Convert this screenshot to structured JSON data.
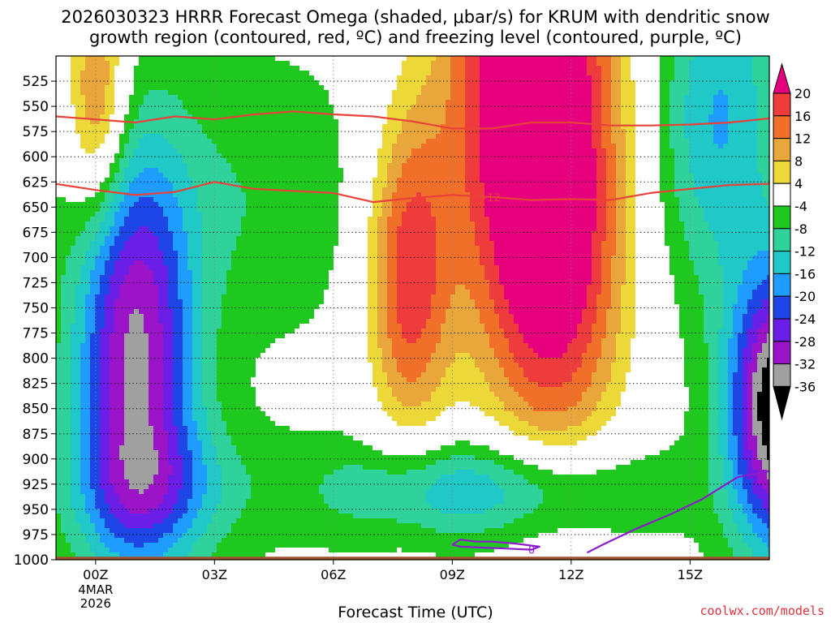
{
  "title_line1": "2026030323 HRRR Forecast Omega (shaded, μbar/s) for KRUM with dendritic snow",
  "title_line2": "growth region (contoured, red, ºC) and freezing level (contoured, purple, ºC)",
  "credit": "coolwx.com/models",
  "chart_data": {
    "type": "heatmap",
    "xlabel": "Forecast Time (UTC)",
    "ylabel": "",
    "x_ticks": [
      "00Z",
      "03Z",
      "06Z",
      "09Z",
      "12Z",
      "15Z"
    ],
    "x_tick_hours": [
      0,
      3,
      6,
      9,
      12,
      15
    ],
    "x_date_label": [
      "4MAR",
      "2026"
    ],
    "xlim_hours": [
      -1,
      17
    ],
    "y_ticks": [
      525,
      550,
      575,
      600,
      625,
      650,
      675,
      700,
      725,
      750,
      775,
      800,
      825,
      850,
      875,
      900,
      925,
      950,
      975,
      1000
    ],
    "ylim_mb": [
      500,
      1000
    ],
    "colorbar": {
      "levels": [
        20,
        16,
        12,
        8,
        4,
        -4,
        -8,
        -12,
        -16,
        -20,
        -24,
        -28,
        -32,
        -36
      ],
      "colors": [
        "#e6007e",
        "#ee3c3c",
        "#f0702a",
        "#e9a63a",
        "#ecd838",
        "#ffffff",
        "#1ec81e",
        "#2fd29a",
        "#20c8c8",
        "#1e9cff",
        "#1e46e6",
        "#6a1ee6",
        "#9c14c8",
        "#a0a0a0",
        "#000000"
      ]
    },
    "contours": [
      {
        "name": "dendritic",
        "label": "-12",
        "color": "#e8423a",
        "x": [
          -1,
          0,
          1,
          2,
          3,
          4,
          5,
          6,
          7,
          8,
          9,
          10,
          11,
          12,
          13,
          14,
          15,
          16,
          17
        ],
        "y": [
          627,
          633,
          638,
          635,
          625,
          632,
          634,
          636,
          645,
          641,
          638,
          640,
          643,
          642,
          643,
          636,
          632,
          628,
          627
        ]
      },
      {
        "name": "dendritic",
        "label": "",
        "color": "#e8423a",
        "x": [
          -1,
          0,
          1,
          2,
          3,
          4,
          5,
          6,
          7,
          8,
          9,
          10,
          11,
          12,
          13,
          14,
          15,
          16,
          17
        ],
        "y": [
          560,
          563,
          566,
          560,
          563,
          558,
          555,
          558,
          560,
          565,
          572,
          572,
          566,
          566,
          569,
          569,
          568,
          566,
          562
        ]
      },
      {
        "name": "freezing",
        "label": "0",
        "color": "#8a1ccc",
        "x": [
          9,
          9.2,
          9.6,
          10,
          10.6,
          11.2,
          11.0,
          10.4,
          9.8,
          9.2,
          9
        ],
        "y": [
          985,
          980,
          982,
          982,
          984,
          987,
          990,
          989,
          988,
          987,
          985
        ]
      },
      {
        "name": "freezing",
        "label": "",
        "color": "#8a1ccc",
        "x": [
          12.4,
          12.8,
          13.6,
          14.5,
          15.3,
          16.2,
          17
        ],
        "y": [
          993,
          985,
          970,
          955,
          940,
          918,
          912
        ]
      }
    ]
  }
}
